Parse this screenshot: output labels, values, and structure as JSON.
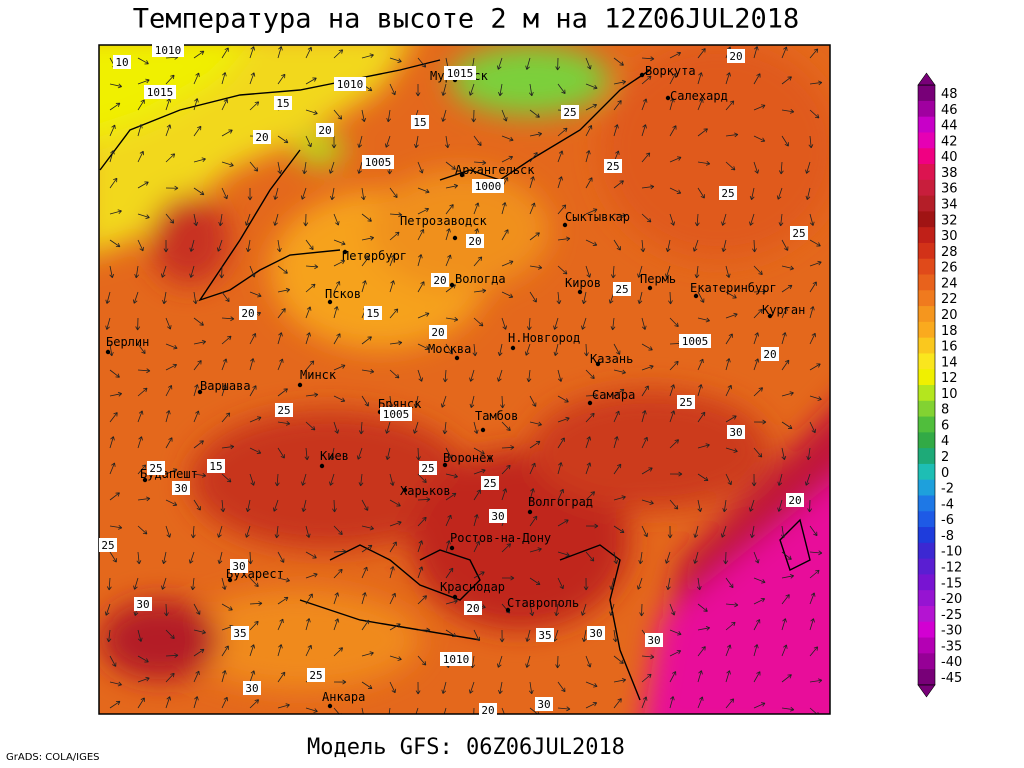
{
  "title": "Температура на высоте 2 м на 12Z06JUL2018",
  "footer": {
    "credit": "GrADS: COLA/IGES",
    "model": "Модель GFS: 06Z06JUL2018"
  },
  "cities": [
    "Мурманск",
    "Воркута",
    "Салехард",
    "Архангельск",
    "Сыктывкар",
    "Петрозаводск",
    "Петербург",
    "Вологда",
    "Киров",
    "Пермь",
    "Екатеринбург",
    "Курган",
    "Псков",
    "Москва",
    "Н.Новгород",
    "Казань",
    "Берлин",
    "Варшава",
    "Минск",
    "Самара",
    "Брянск",
    "Тамбов",
    "Воронеж",
    "Киев",
    "Будапешт",
    "Харьков",
    "Волгоград",
    "Ростов-на-Дону",
    "Бухарест",
    "Краснодар",
    "Ставрополь",
    "Анкара"
  ],
  "isoline_labels": [
    1010,
    10,
    1015,
    1010,
    1015,
    15,
    20,
    20,
    1005,
    15,
    1000,
    25,
    25,
    20,
    25,
    25,
    20,
    20,
    25,
    15,
    20,
    20,
    1005,
    20,
    1005,
    25,
    25,
    30,
    25,
    25,
    30,
    25,
    30,
    30,
    25,
    30,
    20,
    15,
    35,
    30,
    1010,
    30,
    25,
    30,
    35,
    30,
    20,
    20
  ],
  "colorbar": {
    "levels": [
      48,
      46,
      44,
      42,
      40,
      38,
      36,
      34,
      32,
      30,
      28,
      26,
      24,
      22,
      20,
      18,
      16,
      14,
      12,
      10,
      8,
      6,
      4,
      2,
      0,
      -2,
      -4,
      -6,
      -8,
      -10,
      -12,
      -15,
      -20,
      -25,
      -30,
      -35,
      -40,
      -45
    ],
    "colors": [
      "#780078",
      "#a000a0",
      "#c800c8",
      "#e600b4",
      "#f00082",
      "#dc1450",
      "#c81e3c",
      "#b41e28",
      "#a01414",
      "#c02018",
      "#d23218",
      "#e04a1a",
      "#e8621c",
      "#f07a1e",
      "#f5961e",
      "#faaa1e",
      "#fac81e",
      "#fae61e",
      "#f0f000",
      "#b4e61e",
      "#82d232",
      "#50be3c",
      "#32aa46",
      "#1eaa78",
      "#1ebeb4",
      "#1ea0dc",
      "#1e78e6",
      "#1e5ae6",
      "#1e3cdc",
      "#3c28d2",
      "#5a1ed2",
      "#7814d2",
      "#9614d2",
      "#b414d2",
      "#d200d2",
      "#b400b4",
      "#960096",
      "#780078"
    ]
  }
}
